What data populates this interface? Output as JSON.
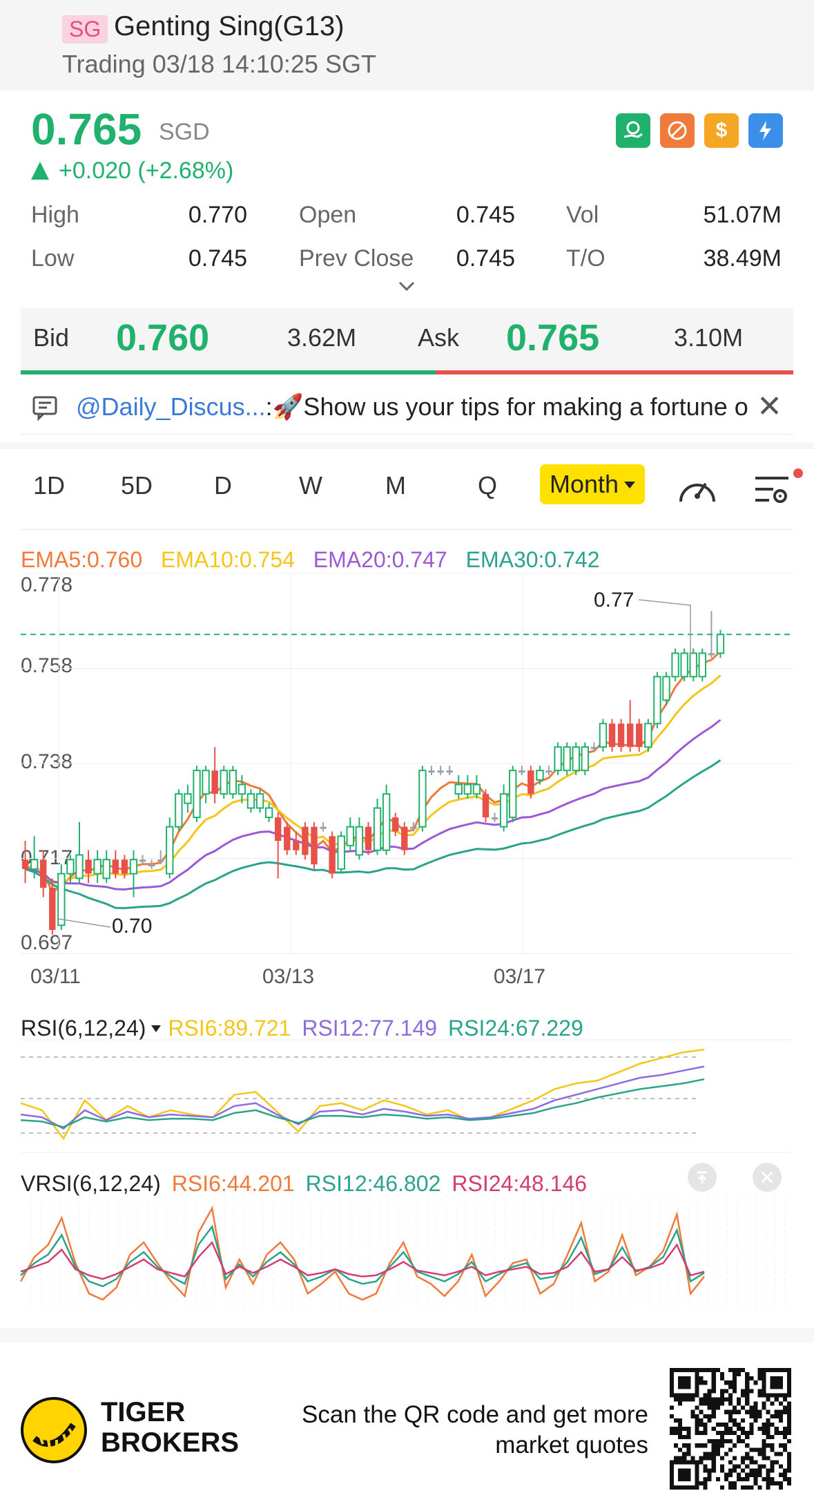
{
  "header": {
    "badge": "SG",
    "title": "Genting Sing(G13)",
    "subtitle": "Trading 03/18 14:10:25 SGT"
  },
  "quote": {
    "price": "0.765",
    "currency": "SGD",
    "change": "+0.020 (+2.68%)",
    "stats": [
      {
        "label": "High",
        "value": "0.770"
      },
      {
        "label": "Open",
        "value": "0.745"
      },
      {
        "label": "Vol",
        "value": "51.07M"
      },
      {
        "label": "Low",
        "value": "0.745"
      },
      {
        "label": "Prev Close",
        "value": "0.745"
      },
      {
        "label": "T/O",
        "value": "38.49M"
      }
    ],
    "icons": [
      "hand-coin-icon",
      "no-short-icon",
      "dollar-icon",
      "lightning-icon"
    ],
    "icon_colors": [
      "#20b26c",
      "#f07a3a",
      "#f5a623",
      "#3b8fe8"
    ]
  },
  "bidask": {
    "bid_label": "Bid",
    "bid_price": "0.760",
    "bid_size": "3.62M",
    "ask_label": "Ask",
    "ask_price": "0.765",
    "ask_size": "3.10M",
    "bid_share": 0.537
  },
  "ticker": {
    "mention": "@Daily_Discus...",
    "message": ":🚀Show us your tips for making a fortune o"
  },
  "tabs": [
    "1D",
    "5D",
    "D",
    "W",
    "M",
    "Q",
    "Month"
  ],
  "chart_data": [
    {
      "type": "candlestick",
      "title": "",
      "legend": [
        {
          "name": "EMA5",
          "value": "0.760",
          "color": "#f07a3a"
        },
        {
          "name": "EMA10",
          "value": "0.754",
          "color": "#f5c518"
        },
        {
          "name": "EMA20",
          "value": "0.747",
          "color": "#9b59d6"
        },
        {
          "name": "EMA30",
          "value": "0.742",
          "color": "#2aa38a"
        }
      ],
      "legend_text": [
        "EMA5:0.760",
        "EMA10:0.754",
        "EMA20:0.747",
        "EMA30:0.742"
      ],
      "y_ticks": [
        "0.778",
        "0.758",
        "0.738",
        "0.717",
        "0.697"
      ],
      "ylim": [
        0.697,
        0.778
      ],
      "x_ticks": [
        "03/11",
        "03/13",
        "03/17"
      ],
      "high_marker": "0.77",
      "low_marker": "0.70",
      "last_price_line": 0.765,
      "colors": {
        "up": "#20b26c",
        "down": "#e8514a",
        "flat": "#9aa0a6"
      },
      "candles": [
        [
          0.717,
          0.715,
          0.721,
          0.712
        ],
        [
          0.715,
          0.717,
          0.722,
          0.713
        ],
        [
          0.717,
          0.711,
          0.719,
          0.709
        ],
        [
          0.711,
          0.702,
          0.713,
          0.701
        ],
        [
          0.703,
          0.714,
          0.716,
          0.702
        ],
        [
          0.714,
          0.717,
          0.718,
          0.712
        ],
        [
          0.713,
          0.718,
          0.725,
          0.712
        ],
        [
          0.717,
          0.714,
          0.719,
          0.712
        ],
        [
          0.714,
          0.717,
          0.719,
          0.712
        ],
        [
          0.713,
          0.717,
          0.719,
          0.712
        ],
        [
          0.717,
          0.714,
          0.719,
          0.713
        ],
        [
          0.717,
          0.714,
          0.718,
          0.713
        ],
        [
          0.714,
          0.717,
          0.719,
          0.709
        ],
        [
          0.717,
          0.717,
          0.718,
          0.716
        ],
        [
          0.716,
          0.716,
          0.717,
          0.715
        ],
        [
          0.717,
          0.717,
          0.719,
          0.716
        ],
        [
          0.714,
          0.724,
          0.726,
          0.713
        ],
        [
          0.724,
          0.731,
          0.732,
          0.723
        ],
        [
          0.729,
          0.731,
          0.733,
          0.727
        ],
        [
          0.726,
          0.736,
          0.737,
          0.725
        ],
        [
          0.731,
          0.736,
          0.737,
          0.729
        ],
        [
          0.736,
          0.731,
          0.741,
          0.729
        ],
        [
          0.731,
          0.736,
          0.737,
          0.73
        ],
        [
          0.731,
          0.736,
          0.737,
          0.73
        ],
        [
          0.731,
          0.733,
          0.735,
          0.729
        ],
        [
          0.728,
          0.731,
          0.732,
          0.727
        ],
        [
          0.728,
          0.731,
          0.732,
          0.727
        ],
        [
          0.726,
          0.728,
          0.729,
          0.725
        ],
        [
          0.726,
          0.721,
          0.727,
          0.713
        ],
        [
          0.724,
          0.719,
          0.725,
          0.718
        ],
        [
          0.721,
          0.719,
          0.723,
          0.718
        ],
        [
          0.724,
          0.718,
          0.725,
          0.717
        ],
        [
          0.724,
          0.716,
          0.725,
          0.715
        ],
        [
          0.724,
          0.724,
          0.725,
          0.723
        ],
        [
          0.722,
          0.714,
          0.723,
          0.713
        ],
        [
          0.715,
          0.722,
          0.723,
          0.714
        ],
        [
          0.72,
          0.724,
          0.726,
          0.719
        ],
        [
          0.718,
          0.724,
          0.726,
          0.717
        ],
        [
          0.724,
          0.719,
          0.725,
          0.718
        ],
        [
          0.719,
          0.728,
          0.73,
          0.718
        ],
        [
          0.719,
          0.731,
          0.733,
          0.718
        ],
        [
          0.726,
          0.723,
          0.727,
          0.722
        ],
        [
          0.724,
          0.719,
          0.725,
          0.718
        ],
        [
          0.724,
          0.724,
          0.725,
          0.723
        ],
        [
          0.724,
          0.736,
          0.737,
          0.723
        ],
        [
          0.736,
          0.736,
          0.737,
          0.735
        ],
        [
          0.736,
          0.736,
          0.737,
          0.735
        ],
        [
          0.736,
          0.736,
          0.737,
          0.735
        ],
        [
          0.731,
          0.733,
          0.735,
          0.73
        ],
        [
          0.731,
          0.733,
          0.735,
          0.73
        ],
        [
          0.731,
          0.733,
          0.735,
          0.73
        ],
        [
          0.731,
          0.726,
          0.732,
          0.725
        ],
        [
          0.726,
          0.726,
          0.727,
          0.725
        ],
        [
          0.724,
          0.731,
          0.733,
          0.723
        ],
        [
          0.726,
          0.736,
          0.737,
          0.725
        ],
        [
          0.736,
          0.736,
          0.737,
          0.735
        ],
        [
          0.736,
          0.731,
          0.737,
          0.73
        ],
        [
          0.734,
          0.736,
          0.737,
          0.733
        ],
        [
          0.736,
          0.736,
          0.737,
          0.735
        ],
        [
          0.736,
          0.741,
          0.742,
          0.735
        ],
        [
          0.736,
          0.741,
          0.742,
          0.735
        ],
        [
          0.736,
          0.741,
          0.742,
          0.735
        ],
        [
          0.736,
          0.741,
          0.742,
          0.735
        ],
        [
          0.741,
          0.741,
          0.742,
          0.74
        ],
        [
          0.741,
          0.746,
          0.747,
          0.74
        ],
        [
          0.746,
          0.741,
          0.747,
          0.74
        ],
        [
          0.746,
          0.741,
          0.747,
          0.74
        ],
        [
          0.746,
          0.741,
          0.751,
          0.74
        ],
        [
          0.746,
          0.741,
          0.747,
          0.74
        ],
        [
          0.741,
          0.746,
          0.747,
          0.74
        ],
        [
          0.746,
          0.756,
          0.757,
          0.745
        ],
        [
          0.751,
          0.756,
          0.757,
          0.75
        ],
        [
          0.756,
          0.761,
          0.762,
          0.755
        ],
        [
          0.756,
          0.761,
          0.762,
          0.755
        ],
        [
          0.756,
          0.761,
          0.762,
          0.755
        ],
        [
          0.756,
          0.761,
          0.762,
          0.755
        ],
        [
          0.761,
          0.761,
          0.77,
          0.76
        ],
        [
          0.761,
          0.765,
          0.766,
          0.76
        ]
      ]
    },
    {
      "type": "line",
      "title": "RSI(6,12,24)",
      "legend_text": [
        "RSI6:89.721",
        "RSI12:77.149",
        "RSI24:67.229"
      ],
      "series": [
        {
          "name": "RSI6",
          "color": "#f5c518"
        },
        {
          "name": "RSI12",
          "color": "#8e6be0"
        },
        {
          "name": "RSI24",
          "color": "#2aa38a"
        }
      ]
    },
    {
      "type": "line",
      "title": "VRSI(6,12,24)",
      "legend_text": [
        "RSI6:44.201",
        "RSI12:46.802",
        "RSI24:48.146"
      ],
      "series": [
        {
          "name": "RSI6",
          "color": "#f07a3a"
        },
        {
          "name": "RSI12",
          "color": "#2aa38a"
        },
        {
          "name": "RSI24",
          "color": "#d63c6f"
        }
      ]
    }
  ],
  "footer": {
    "brand_line1": "TIGER",
    "brand_line2": "BROKERS",
    "scan_line1": "Scan the QR code and get more",
    "scan_line2": "market quotes"
  }
}
